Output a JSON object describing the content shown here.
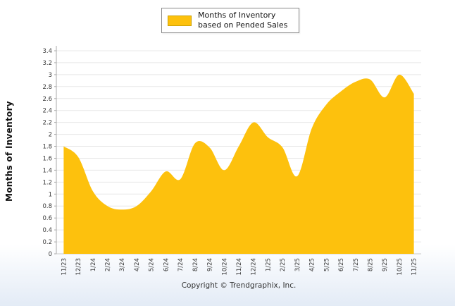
{
  "page": {
    "footer": "Copyright © Trendgraphix, Inc."
  },
  "legend": {
    "label": "Months of Inventory based on Pended Sales"
  },
  "chart_data": {
    "type": "area",
    "title": "",
    "ylabel": "Months of Inventory",
    "xlabel": "",
    "ylim": [
      0,
      3.4
    ],
    "ytick_step": 0.2,
    "grid": true,
    "legend_position": "top",
    "categories": [
      "11/23",
      "12/23",
      "1/24",
      "2/24",
      "3/24",
      "4/24",
      "5/24",
      "6/24",
      "7/24",
      "8/24",
      "9/24",
      "10/24",
      "11/24",
      "12/24",
      "1/25",
      "2/25",
      "3/25",
      "4/25",
      "5/25",
      "6/25",
      "7/25",
      "8/25",
      "9/25",
      "10/25",
      "11/25"
    ],
    "series": [
      {
        "name": "Months of Inventory based on Pended Sales",
        "values": [
          1.8,
          1.62,
          1.05,
          0.8,
          0.74,
          0.8,
          1.05,
          1.38,
          1.25,
          1.85,
          1.78,
          1.4,
          1.8,
          2.2,
          1.95,
          1.78,
          1.3,
          2.1,
          2.5,
          2.72,
          2.88,
          2.92,
          2.62,
          3.0,
          2.68
        ]
      }
    ],
    "colors": {
      "area": "#FDC10D",
      "grid": "#e8e8e8",
      "axis": "#a8a8a8",
      "baseline": "#c9c9c9",
      "tick_text": "#3a3a3a"
    }
  }
}
